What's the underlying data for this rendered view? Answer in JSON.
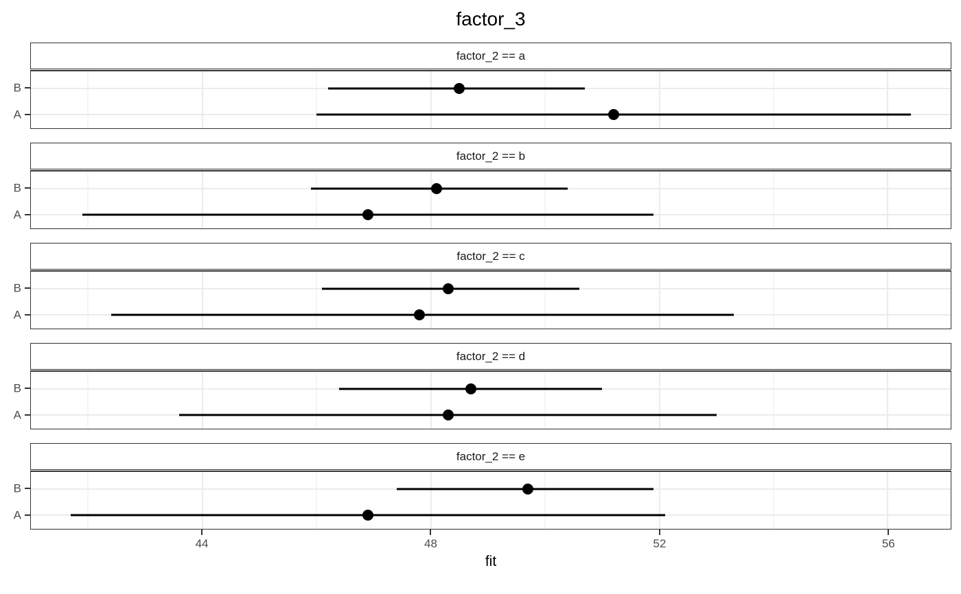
{
  "chart_data": {
    "type": "scatter",
    "subtype": "point-estimate-with-horizontal-error-bars",
    "title": "factor_3",
    "xlabel": "fit",
    "ylabel": "",
    "xlim": [
      41.0,
      57.1
    ],
    "x_ticks": [
      44,
      48,
      52,
      56
    ],
    "x_minor_gridlines": [
      42,
      46,
      50,
      54
    ],
    "grid": "on",
    "legend": "none",
    "y_categories": [
      "B",
      "A"
    ],
    "facets": [
      {
        "label": "factor_2 == a",
        "rows": [
          {
            "category": "B",
            "estimate": 48.5,
            "lower": 46.2,
            "upper": 50.7
          },
          {
            "category": "A",
            "estimate": 51.2,
            "lower": 46.0,
            "upper": 56.4
          }
        ]
      },
      {
        "label": "factor_2 == b",
        "rows": [
          {
            "category": "B",
            "estimate": 48.1,
            "lower": 45.9,
            "upper": 50.4
          },
          {
            "category": "A",
            "estimate": 46.9,
            "lower": 41.9,
            "upper": 51.9
          }
        ]
      },
      {
        "label": "factor_2 == c",
        "rows": [
          {
            "category": "B",
            "estimate": 48.3,
            "lower": 46.1,
            "upper": 50.6
          },
          {
            "category": "A",
            "estimate": 47.8,
            "lower": 42.4,
            "upper": 53.3
          }
        ]
      },
      {
        "label": "factor_2 == d",
        "rows": [
          {
            "category": "B",
            "estimate": 48.7,
            "lower": 46.4,
            "upper": 51.0
          },
          {
            "category": "A",
            "estimate": 48.3,
            "lower": 43.6,
            "upper": 53.0
          }
        ]
      },
      {
        "label": "factor_2 == e",
        "rows": [
          {
            "category": "B",
            "estimate": 49.7,
            "lower": 47.4,
            "upper": 51.9
          },
          {
            "category": "A",
            "estimate": 46.9,
            "lower": 41.7,
            "upper": 52.1
          }
        ]
      }
    ],
    "colors": {
      "point": "#000000",
      "error_bar": "#000000",
      "gridline": "#ebebeb",
      "panel_border": "#333333",
      "strip_background": "#ffffff",
      "strip_text": "#1a1a1a",
      "axis_text": "#4d4d4d",
      "title_text": "#000000",
      "background": "#ffffff"
    }
  }
}
